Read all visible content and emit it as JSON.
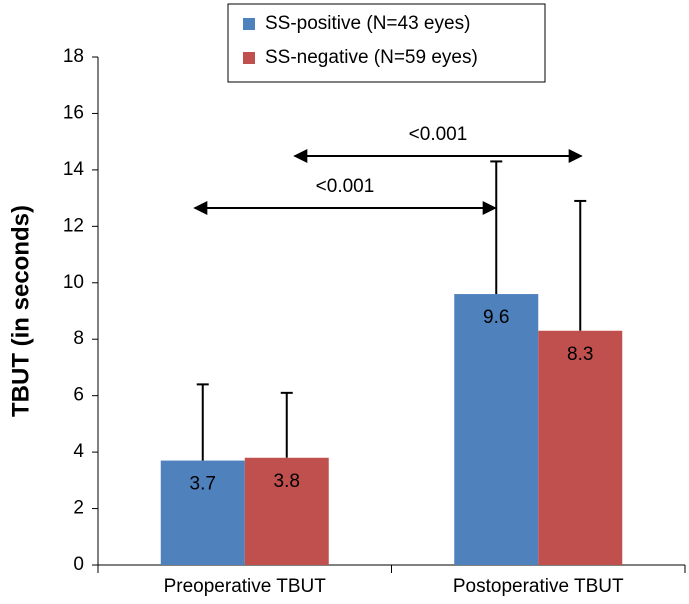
{
  "chart_data": {
    "type": "bar",
    "y_label": "TBUT (in seconds)",
    "categories": [
      "Preoperative TBUT",
      "Postoperative TBUT"
    ],
    "series": [
      {
        "name": "SS-positive (N=43 eyes)",
        "color": "#4f81bd",
        "values": [
          3.7,
          9.6
        ],
        "errors": [
          2.7,
          4.7
        ]
      },
      {
        "name": "SS-negative (N=59 eyes)",
        "color": "#c0504d",
        "values": [
          3.8,
          8.3
        ],
        "errors": [
          2.3,
          4.6
        ]
      }
    ],
    "ylim": [
      0,
      18
    ],
    "yticks": [
      0,
      2,
      4,
      6,
      8,
      10,
      12,
      14,
      16,
      18
    ],
    "annotations": [
      "<0.001",
      "<0.001"
    ]
  }
}
